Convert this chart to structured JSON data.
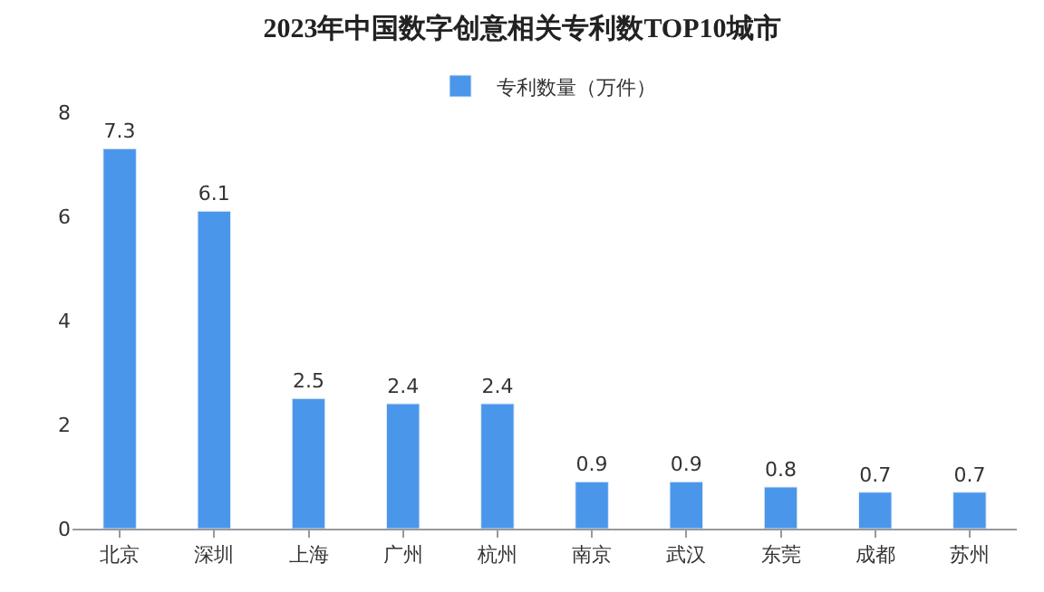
{
  "chart_data": {
    "type": "bar",
    "title": "2023年中国数字创意相关专利数TOP10城市",
    "categories": [
      "北京",
      "深圳",
      "上海",
      "广州",
      "杭州",
      "南京",
      "武汉",
      "东莞",
      "成都",
      "苏州"
    ],
    "series": [
      {
        "name": "专利数量（万件）",
        "color": "#4a96ea",
        "values": [
          7.3,
          6.1,
          2.5,
          2.4,
          2.4,
          0.9,
          0.9,
          0.8,
          0.7,
          0.7
        ]
      }
    ],
    "ylim": [
      0,
      8
    ],
    "yticks": [
      0,
      2,
      4,
      6,
      8
    ],
    "legend": "top",
    "data_labels": true
  }
}
